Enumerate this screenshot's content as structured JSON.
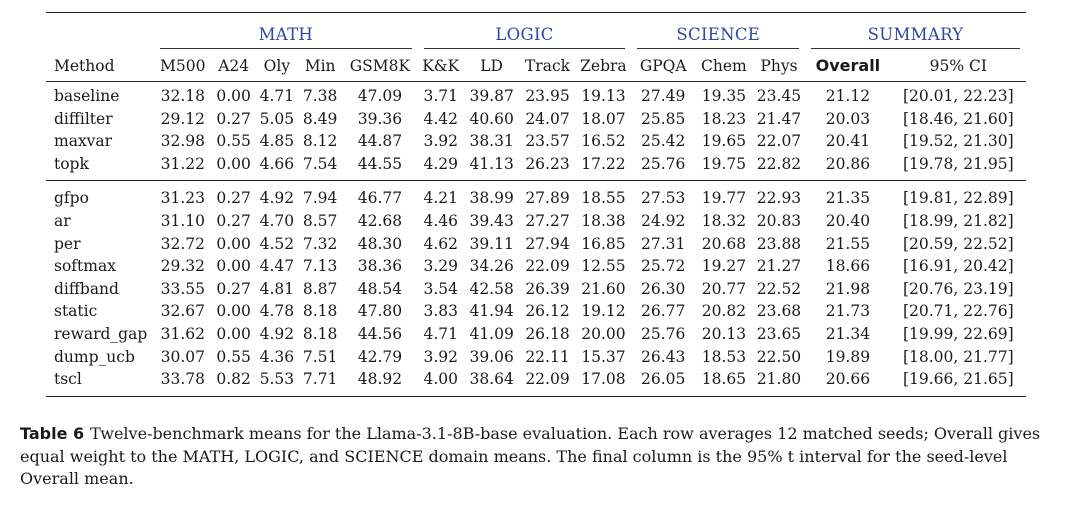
{
  "table": {
    "groups": [
      "MATH",
      "LOGIC",
      "SCIENCE",
      "SUMMARY"
    ],
    "method_header": "Method",
    "columns": [
      "M500",
      "A24",
      "Oly",
      "Min",
      "GSM8K",
      "K&K",
      "LD",
      "Track",
      "Zebra",
      "GPQA",
      "Chem",
      "Phys",
      "Overall",
      "95% CI"
    ],
    "block1": [
      {
        "method": "baseline",
        "values": [
          "32.18",
          "0.00",
          "4.71",
          "7.38",
          "47.09",
          "3.71",
          "39.87",
          "23.95",
          "19.13",
          "27.49",
          "19.35",
          "23.45",
          "21.12",
          "[20.01, 22.23]"
        ]
      },
      {
        "method": "diffilter",
        "values": [
          "29.12",
          "0.27",
          "5.05",
          "8.49",
          "39.36",
          "4.42",
          "40.60",
          "24.07",
          "18.07",
          "25.85",
          "18.23",
          "21.47",
          "20.03",
          "[18.46, 21.60]"
        ]
      },
      {
        "method": "maxvar",
        "values": [
          "32.98",
          "0.55",
          "4.85",
          "8.12",
          "44.87",
          "3.92",
          "38.31",
          "23.57",
          "16.52",
          "25.42",
          "19.65",
          "22.07",
          "20.41",
          "[19.52, 21.30]"
        ]
      },
      {
        "method": "topk",
        "values": [
          "31.22",
          "0.00",
          "4.66",
          "7.54",
          "44.55",
          "4.29",
          "41.13",
          "26.23",
          "17.22",
          "25.76",
          "19.75",
          "22.82",
          "20.86",
          "[19.78, 21.95]"
        ]
      }
    ],
    "block2": [
      {
        "method": "gfpo",
        "values": [
          "31.23",
          "0.27",
          "4.92",
          "7.94",
          "46.77",
          "4.21",
          "38.99",
          "27.89",
          "18.55",
          "27.53",
          "19.77",
          "22.93",
          "21.35",
          "[19.81, 22.89]"
        ]
      },
      {
        "method": "ar",
        "values": [
          "31.10",
          "0.27",
          "4.70",
          "8.57",
          "42.68",
          "4.46",
          "39.43",
          "27.27",
          "18.38",
          "24.92",
          "18.32",
          "20.83",
          "20.40",
          "[18.99, 21.82]"
        ]
      },
      {
        "method": "per",
        "values": [
          "32.72",
          "0.00",
          "4.52",
          "7.32",
          "48.30",
          "4.62",
          "39.11",
          "27.94",
          "16.85",
          "27.31",
          "20.68",
          "23.88",
          "21.55",
          "[20.59, 22.52]"
        ]
      },
      {
        "method": "softmax",
        "values": [
          "29.32",
          "0.00",
          "4.47",
          "7.13",
          "38.36",
          "3.29",
          "34.26",
          "22.09",
          "12.55",
          "25.72",
          "19.27",
          "21.27",
          "18.66",
          "[16.91, 20.42]"
        ]
      },
      {
        "method": "diffband",
        "values": [
          "33.55",
          "0.27",
          "4.81",
          "8.87",
          "48.54",
          "3.54",
          "42.58",
          "26.39",
          "21.60",
          "26.30",
          "20.77",
          "22.52",
          "21.98",
          "[20.76, 23.19]"
        ]
      },
      {
        "method": "static",
        "values": [
          "32.67",
          "0.00",
          "4.78",
          "8.18",
          "47.80",
          "3.83",
          "41.94",
          "26.12",
          "19.12",
          "26.77",
          "20.82",
          "23.68",
          "21.73",
          "[20.71, 22.76]"
        ]
      },
      {
        "method": "reward_gap",
        "values": [
          "31.62",
          "0.00",
          "4.92",
          "8.18",
          "44.56",
          "4.71",
          "41.09",
          "26.18",
          "20.00",
          "25.76",
          "20.13",
          "23.65",
          "21.34",
          "[19.99, 22.69]"
        ]
      },
      {
        "method": "dump_ucb",
        "values": [
          "30.07",
          "0.55",
          "4.36",
          "7.51",
          "42.79",
          "3.92",
          "39.06",
          "22.11",
          "15.37",
          "26.43",
          "18.53",
          "22.50",
          "19.89",
          "[18.00, 21.77]"
        ]
      },
      {
        "method": "tscl",
        "values": [
          "33.78",
          "0.82",
          "5.53",
          "7.71",
          "48.92",
          "4.00",
          "38.64",
          "22.09",
          "17.08",
          "26.05",
          "18.65",
          "21.80",
          "20.66",
          "[19.66, 21.65]"
        ]
      }
    ]
  },
  "caption": {
    "label": "Table 6",
    "text": "Twelve-benchmark means for the Llama-3.1-8B-base evaluation. Each row averages 12 matched seeds; Overall gives equal weight to the MATH, LOGIC, and SCIENCE domain means. The final column is the 95% t interval for the seed-level Overall mean."
  },
  "colors": {
    "group_header": "#2c47a3",
    "text": "#1a1a1a",
    "rules": "#222222"
  }
}
